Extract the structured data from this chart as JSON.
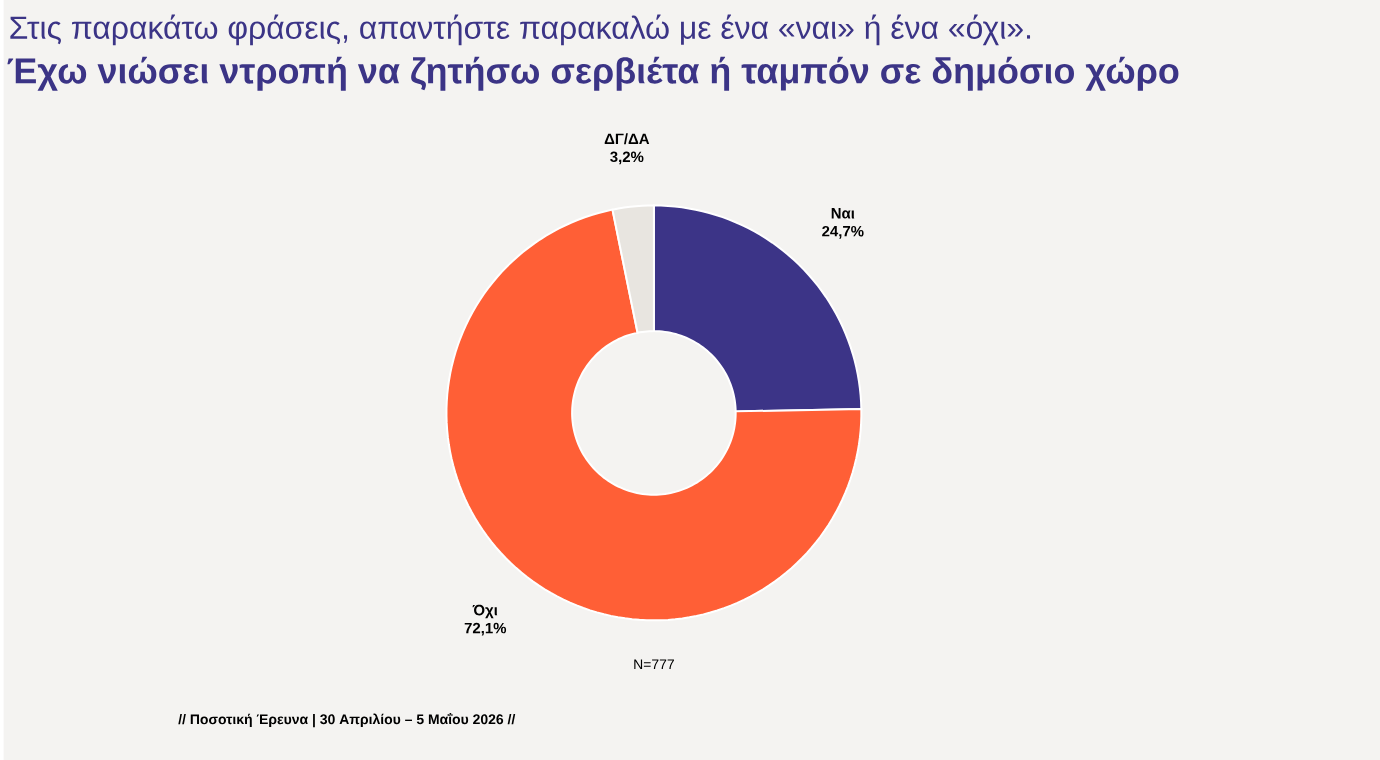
{
  "chart_data": {
    "type": "donut",
    "subtitle": "Στις παρακάτω φράσεις, απαντήστε παρακαλώ με ένα «ναι» ή ένα «όχι».",
    "title": "Έχω νιώσει ντροπή να ζητήσω σερβιέτα ή ταμπόν σε δημόσιο χώρο",
    "categories": [
      "Ναι",
      "Όχι",
      "ΔΓ/ΔΑ"
    ],
    "values": [
      24.7,
      72.1,
      3.2
    ],
    "value_labels": [
      "24,7%",
      "72,1%",
      "3,2%"
    ],
    "colors": [
      "#3c3487",
      "#ff5f36",
      "#e8e5e0"
    ],
    "annotations": [
      "N=777",
      "// Ποσοτική Έρευνα | 30 Απριλίου – 5 Μαΐου 2026 //"
    ]
  }
}
